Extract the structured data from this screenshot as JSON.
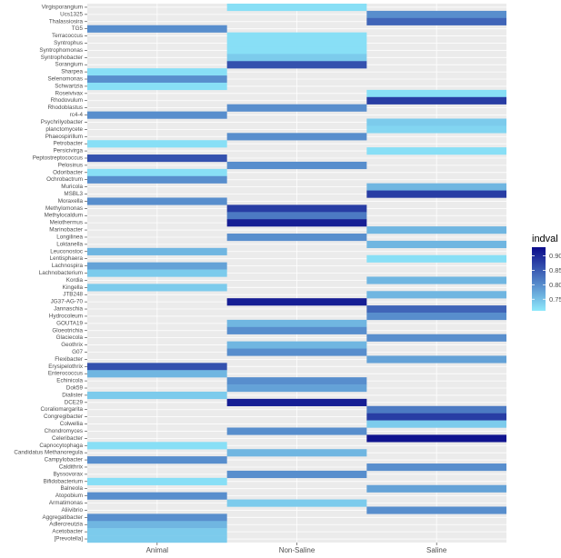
{
  "chart_data": {
    "type": "heatmap",
    "x_categories": [
      "Animal",
      "Non-Saline",
      "Saline"
    ],
    "y_categories": [
      "Virgisporangium",
      "Ucs1325",
      "Thalassiosira",
      "TG5",
      "Terracoccus",
      "Syntrophus",
      "Syntrophomonas",
      "Syntrophobacter",
      "Sorangium",
      "Sharpea",
      "Selenomonas",
      "Schwartzia",
      "Roseivivax",
      "Rhodovulum",
      "Rhodoblastus",
      "rc4-4",
      "Psychrilyobacter",
      "planctomycete",
      "Phaeospirillum",
      "Petrobacter",
      "Persicivirga",
      "Peptostreptococcus",
      "Pelosinus",
      "Odoribacter",
      "Ochrobactrum",
      "Muricola",
      "MSBL3",
      "Moraxella",
      "Methylomonas",
      "Methylocaldum",
      "Meiothermus",
      "Marinobacter",
      "Longilinea",
      "Loktanella",
      "Leuconostoc",
      "Lentisphaera",
      "Lachnospira",
      "Lachnobacterium",
      "Kordia",
      "Kingella",
      "JTB248",
      "JG37-AG-70",
      "Jannaschia",
      "Hydrocoleum",
      "GOUTA19",
      "Gloeotrichia",
      "Glaciecola",
      "Geothrix",
      "G07",
      "Flexibacter",
      "Erysipelothrix",
      "Enterococcus",
      "Echinicola",
      "Dok59",
      "Dialister",
      "DCE29",
      "Coraliomargarita",
      "Congregibacter",
      "Colwellia",
      "Chondromyces",
      "Celeribacter",
      "Capnocytophaga",
      "Candidatus Methanoregula",
      "Campylobacter",
      "Caldithrix",
      "Byssovorax",
      "Bifidobacterium",
      "Balneola",
      "Atopobium",
      "Armatimonas",
      "Aliivibrio",
      "Aggregatibacter",
      "Adlercreutzia",
      "Acetobacter",
      "[Prevotella]"
    ],
    "cells": [
      {
        "y": "Virgisporangium",
        "x": "Non-Saline",
        "value": 0.72
      },
      {
        "y": "Ucs1325",
        "x": "Saline",
        "value": 0.8
      },
      {
        "y": "Thalassiosira",
        "x": "Saline",
        "value": 0.84
      },
      {
        "y": "TG5",
        "x": "Animal",
        "value": 0.8
      },
      {
        "y": "Terracoccus",
        "x": "Non-Saline",
        "value": 0.72
      },
      {
        "y": "Syntrophus",
        "x": "Non-Saline",
        "value": 0.72
      },
      {
        "y": "Syntrophomonas",
        "x": "Non-Saline",
        "value": 0.72
      },
      {
        "y": "Syntrophobacter",
        "x": "Non-Saline",
        "value": 0.74
      },
      {
        "y": "Sorangium",
        "x": "Non-Saline",
        "value": 0.86
      },
      {
        "y": "Sharpea",
        "x": "Animal",
        "value": 0.72
      },
      {
        "y": "Selenomonas",
        "x": "Animal",
        "value": 0.8
      },
      {
        "y": "Schwartzia",
        "x": "Animal",
        "value": 0.72
      },
      {
        "y": "Roseivivax",
        "x": "Saline",
        "value": 0.72
      },
      {
        "y": "Rhodovulum",
        "x": "Saline",
        "value": 0.88
      },
      {
        "y": "Rhodoblastus",
        "x": "Non-Saline",
        "value": 0.8
      },
      {
        "y": "rc4-4",
        "x": "Animal",
        "value": 0.8
      },
      {
        "y": "Psychrilyobacter",
        "x": "Saline",
        "value": 0.74
      },
      {
        "y": "planctomycete",
        "x": "Saline",
        "value": 0.73
      },
      {
        "y": "Phaeospirillum",
        "x": "Non-Saline",
        "value": 0.8
      },
      {
        "y": "Petrobacter",
        "x": "Animal",
        "value": 0.72
      },
      {
        "y": "Persicivirga",
        "x": "Saline",
        "value": 0.72
      },
      {
        "y": "Peptostreptococcus",
        "x": "Animal",
        "value": 0.86
      },
      {
        "y": "Pelosinus",
        "x": "Non-Saline",
        "value": 0.8
      },
      {
        "y": "Odoribacter",
        "x": "Animal",
        "value": 0.72
      },
      {
        "y": "Ochrobactrum",
        "x": "Animal",
        "value": 0.8
      },
      {
        "y": "Muricola",
        "x": "Saline",
        "value": 0.76
      },
      {
        "y": "MSBL3",
        "x": "Saline",
        "value": 0.88
      },
      {
        "y": "Moraxella",
        "x": "Animal",
        "value": 0.8
      },
      {
        "y": "Methylomonas",
        "x": "Non-Saline",
        "value": 0.88
      },
      {
        "y": "Methylocaldum",
        "x": "Non-Saline",
        "value": 0.82
      },
      {
        "y": "Meiothermus",
        "x": "Non-Saline",
        "value": 0.91
      },
      {
        "y": "Marinobacter",
        "x": "Saline",
        "value": 0.76
      },
      {
        "y": "Longilinea",
        "x": "Non-Saline",
        "value": 0.8
      },
      {
        "y": "Loktanella",
        "x": "Saline",
        "value": 0.76
      },
      {
        "y": "Leuconostoc",
        "x": "Animal",
        "value": 0.76
      },
      {
        "y": "Lentisphaera",
        "x": "Saline",
        "value": 0.72
      },
      {
        "y": "Lachnospira",
        "x": "Animal",
        "value": 0.78
      },
      {
        "y": "Lachnobacterium",
        "x": "Animal",
        "value": 0.74
      },
      {
        "y": "Kordia",
        "x": "Saline",
        "value": 0.76
      },
      {
        "y": "Kingella",
        "x": "Animal",
        "value": 0.74
      },
      {
        "y": "JTB248",
        "x": "Saline",
        "value": 0.76
      },
      {
        "y": "JG37-AG-70",
        "x": "Non-Saline",
        "value": 0.91
      },
      {
        "y": "Jannaschia",
        "x": "Saline",
        "value": 0.84
      },
      {
        "y": "Hydrocoleum",
        "x": "Saline",
        "value": 0.8
      },
      {
        "y": "GOUTA19",
        "x": "Non-Saline",
        "value": 0.76
      },
      {
        "y": "Gloeotrichia",
        "x": "Non-Saline",
        "value": 0.8
      },
      {
        "y": "Glaciecola",
        "x": "Saline",
        "value": 0.8
      },
      {
        "y": "Geothrix",
        "x": "Non-Saline",
        "value": 0.76
      },
      {
        "y": "G07",
        "x": "Non-Saline",
        "value": 0.8
      },
      {
        "y": "Flexibacter",
        "x": "Saline",
        "value": 0.78
      },
      {
        "y": "Erysipelothrix",
        "x": "Animal",
        "value": 0.86
      },
      {
        "y": "Enterococcus",
        "x": "Animal",
        "value": 0.76
      },
      {
        "y": "Echinicola",
        "x": "Non-Saline",
        "value": 0.8
      },
      {
        "y": "Dok59",
        "x": "Non-Saline",
        "value": 0.78
      },
      {
        "y": "Dialister",
        "x": "Animal",
        "value": 0.74
      },
      {
        "y": "DCE29",
        "x": "Non-Saline",
        "value": 0.91
      },
      {
        "y": "Coraliomargarita",
        "x": "Saline",
        "value": 0.82
      },
      {
        "y": "Congregibacter",
        "x": "Saline",
        "value": 0.88
      },
      {
        "y": "Colwellia",
        "x": "Saline",
        "value": 0.74
      },
      {
        "y": "Chondromyces",
        "x": "Non-Saline",
        "value": 0.8
      },
      {
        "y": "Celeribacter",
        "x": "Saline",
        "value": 0.92
      },
      {
        "y": "Capnocytophaga",
        "x": "Animal",
        "value": 0.72
      },
      {
        "y": "Candidatus Methanoregula",
        "x": "Non-Saline",
        "value": 0.76
      },
      {
        "y": "Campylobacter",
        "x": "Animal",
        "value": 0.8
      },
      {
        "y": "Caldithrix",
        "x": "Saline",
        "value": 0.8
      },
      {
        "y": "Byssovorax",
        "x": "Non-Saline",
        "value": 0.8
      },
      {
        "y": "Bifidobacterium",
        "x": "Animal",
        "value": 0.72
      },
      {
        "y": "Balneola",
        "x": "Saline",
        "value": 0.78
      },
      {
        "y": "Atopobium",
        "x": "Animal",
        "value": 0.8
      },
      {
        "y": "Armatimonas",
        "x": "Non-Saline",
        "value": 0.74
      },
      {
        "y": "Aliivibrio",
        "x": "Saline",
        "value": 0.8
      },
      {
        "y": "Aggregatibacter",
        "x": "Animal",
        "value": 0.8
      },
      {
        "y": "Adlercreutzia",
        "x": "Animal",
        "value": 0.76
      },
      {
        "y": "Acetobacter",
        "x": "Animal",
        "value": 0.74
      },
      {
        "y": "[Prevotella]",
        "x": "Animal",
        "value": 0.74
      }
    ],
    "legend": {
      "title": "indval",
      "ticks": [
        0.9,
        0.85,
        0.8,
        0.75
      ],
      "tick_labels": [
        "0.90",
        "0.85",
        "0.80",
        "0.75"
      ],
      "range": [
        0.71,
        0.93
      ],
      "color_low": "#8ee9fb",
      "color_high": "#0a0a8a"
    },
    "colors": {
      "panel_background": "#ebebeb",
      "gridline": "#ffffff",
      "axis_text": "#4d4d4d"
    }
  }
}
